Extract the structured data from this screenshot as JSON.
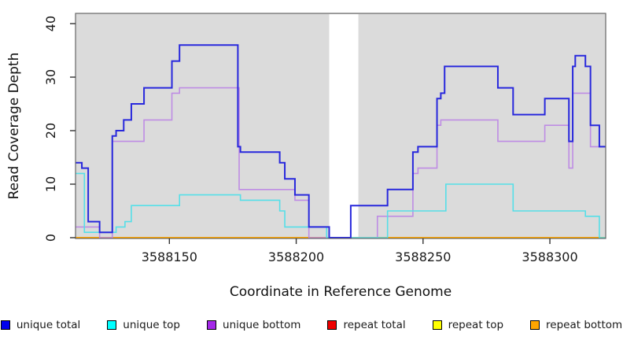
{
  "chart_data": {
    "type": "line",
    "subtype": "step-coverage-plot",
    "title": "",
    "xlabel": "Coordinate in Reference Genome",
    "ylabel": "Read Coverage Depth",
    "xlim": [
      3588113,
      3588322
    ],
    "ylim": [
      0,
      42
    ],
    "x_ticks": [
      3588150,
      3588200,
      3588250,
      3588300
    ],
    "x_tick_labels": [
      "3588150",
      "3588200",
      "3588250",
      "3588300"
    ],
    "y_ticks": [
      0,
      10,
      20,
      30,
      40
    ],
    "y_tick_labels": [
      "0",
      "10",
      "20",
      "30",
      "40"
    ],
    "grid": false,
    "plot_background": "#dbdbdb",
    "masked_region": {
      "x0": 3588213,
      "x1": 3588224.5,
      "color": "#ffffff"
    },
    "series": [
      {
        "name": "repeat total",
        "color": "#ee0000",
        "width": 2,
        "points": [
          [
            3588113,
            0
          ],
          [
            3588322,
            0
          ]
        ]
      },
      {
        "name": "repeat top",
        "color": "#ffff00",
        "width": 2,
        "points": [
          [
            3588113,
            0
          ],
          [
            3588322,
            0
          ]
        ]
      },
      {
        "name": "repeat bottom",
        "color": "#ffa500",
        "width": 2,
        "points": [
          [
            3588113,
            0
          ],
          [
            3588322,
            0
          ]
        ]
      },
      {
        "name": "unique bottom",
        "color": "#be8ce4",
        "width": 1.6,
        "points": [
          [
            3588113,
            2
          ],
          [
            3588122.5,
            0
          ],
          [
            3588127.5,
            18
          ],
          [
            3588140,
            22
          ],
          [
            3588151,
            27
          ],
          [
            3588154,
            28
          ],
          [
            3588177.5,
            9
          ],
          [
            3588199.5,
            7
          ],
          [
            3588205,
            0
          ],
          [
            3588232,
            4
          ],
          [
            3588246,
            12
          ],
          [
            3588248,
            13
          ],
          [
            3588255.5,
            21
          ],
          [
            3588257,
            22
          ],
          [
            3588279.5,
            18
          ],
          [
            3588298,
            21
          ],
          [
            3588307.5,
            13
          ],
          [
            3588309,
            27
          ],
          [
            3588316,
            17
          ],
          [
            3588322,
            17
          ]
        ]
      },
      {
        "name": "unique top",
        "color": "#55dfe8",
        "width": 1.6,
        "points": [
          [
            3588113,
            12
          ],
          [
            3588116.5,
            1
          ],
          [
            3588129,
            2
          ],
          [
            3588132.5,
            3
          ],
          [
            3588135,
            6
          ],
          [
            3588154,
            8
          ],
          [
            3588178,
            7
          ],
          [
            3588193.5,
            5
          ],
          [
            3588195.5,
            2
          ],
          [
            3588212,
            0
          ],
          [
            3588236,
            5
          ],
          [
            3588259,
            10
          ],
          [
            3588285.5,
            5
          ],
          [
            3588314,
            4
          ],
          [
            3588319.5,
            0
          ],
          [
            3588322,
            0
          ]
        ]
      },
      {
        "name": "unique total",
        "color": "#2828dc",
        "width": 2,
        "points": [
          [
            3588113,
            14
          ],
          [
            3588115.5,
            13
          ],
          [
            3588118,
            3
          ],
          [
            3588122.5,
            1
          ],
          [
            3588127.5,
            19
          ],
          [
            3588129,
            20
          ],
          [
            3588132,
            22
          ],
          [
            3588135,
            25
          ],
          [
            3588140,
            28
          ],
          [
            3588151,
            33
          ],
          [
            3588154,
            36
          ],
          [
            3588177,
            17
          ],
          [
            3588178,
            16
          ],
          [
            3588193.5,
            14
          ],
          [
            3588195.5,
            11
          ],
          [
            3588199.5,
            8
          ],
          [
            3588205,
            2
          ],
          [
            3588213,
            0
          ],
          [
            3588221.5,
            6
          ],
          [
            3588236,
            9
          ],
          [
            3588246,
            16
          ],
          [
            3588248,
            17
          ],
          [
            3588255.5,
            26
          ],
          [
            3588257,
            27
          ],
          [
            3588258.5,
            32
          ],
          [
            3588279.5,
            28
          ],
          [
            3588285.5,
            23
          ],
          [
            3588298,
            26
          ],
          [
            3588307.5,
            18
          ],
          [
            3588309,
            32
          ],
          [
            3588310,
            34
          ],
          [
            3588314,
            32
          ],
          [
            3588316,
            21
          ],
          [
            3588319.5,
            17
          ],
          [
            3588322,
            17
          ]
        ]
      }
    ],
    "legend_position": "bottom"
  },
  "labels": {
    "x_axis_title": "Coordinate in Reference Genome",
    "y_axis_title": "Read Coverage Depth"
  },
  "legend": [
    {
      "label": "unique total",
      "color": "#0000ee"
    },
    {
      "label": "unique top",
      "color": "#00ffff"
    },
    {
      "label": "unique bottom",
      "color": "#a428e8"
    },
    {
      "label": "repeat total",
      "color": "#ee0000"
    },
    {
      "label": "repeat top",
      "color": "#ffff00"
    },
    {
      "label": "repeat bottom",
      "color": "#ffa500"
    }
  ]
}
